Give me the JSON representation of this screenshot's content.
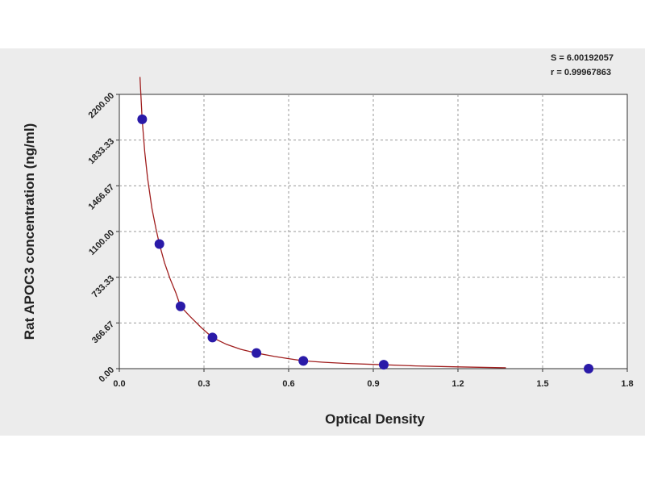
{
  "chart_data": {
    "type": "scatter",
    "xlabel": "Optical Density",
    "ylabel": "Rat APOC3 concentration (ng/ml)",
    "xlim": [
      0.0,
      1.8
    ],
    "ylim": [
      0.0,
      2200.0
    ],
    "x_ticks": [
      "0.0",
      "0.3",
      "0.6",
      "0.9",
      "1.2",
      "1.5",
      "1.8"
    ],
    "y_ticks": [
      "0.00",
      "366.67",
      "733.33",
      "1100.00",
      "1466.67",
      "1833.33",
      "2200.00"
    ],
    "grid": true,
    "points": [
      {
        "x": 0.081,
        "y": 2000
      },
      {
        "x": 0.142,
        "y": 1000
      },
      {
        "x": 0.217,
        "y": 500
      },
      {
        "x": 0.33,
        "y": 250
      },
      {
        "x": 0.486,
        "y": 125
      },
      {
        "x": 0.652,
        "y": 62.5
      },
      {
        "x": 0.937,
        "y": 31.25
      },
      {
        "x": 1.663,
        "y": 0
      }
    ],
    "fit_curve": {
      "x": [
        0.073,
        0.081,
        0.09,
        0.1,
        0.115,
        0.13,
        0.142,
        0.16,
        0.18,
        0.2,
        0.217,
        0.25,
        0.29,
        0.33,
        0.38,
        0.43,
        0.486,
        0.55,
        0.6,
        0.652,
        0.72,
        0.8,
        0.937,
        1.05,
        1.2,
        1.35,
        1.37
      ],
      "y": [
        2340,
        2000,
        1740,
        1530,
        1290,
        1120,
        1000,
        850,
        720,
        610,
        500,
        420,
        330,
        250,
        195,
        155,
        125,
        98,
        80,
        62.5,
        52,
        42,
        31.25,
        22,
        14,
        8,
        7
      ]
    },
    "annotations": [
      "S = 6.00192057",
      "r = 0.99967863"
    ],
    "colors": {
      "points": "#2a1aa8",
      "curve": "#a01e1e",
      "grid": "#9a9a9a"
    }
  }
}
